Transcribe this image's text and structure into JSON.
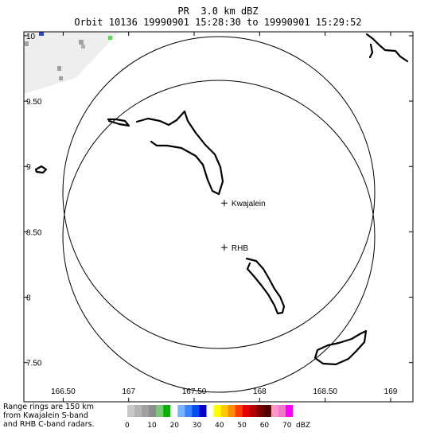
{
  "title": {
    "line1": "PR  3.0 km dBZ",
    "line2": "Orbit 10136 19990901 15:28:30 to 19990901 15:29:52"
  },
  "map": {
    "lon_ticks": [
      {
        "value": 166.5,
        "label": "166.50"
      },
      {
        "value": 167.0,
        "label": "167"
      },
      {
        "value": 167.5,
        "label": "167.50"
      },
      {
        "value": 168.0,
        "label": "168"
      },
      {
        "value": 168.5,
        "label": "168.50"
      },
      {
        "value": 169.0,
        "label": "169"
      }
    ],
    "lat_ticks": [
      {
        "value": 10.0,
        "label": "10"
      },
      {
        "value": 9.5,
        "label": "9.50"
      },
      {
        "value": 9.0,
        "label": "9"
      },
      {
        "value": 8.5,
        "label": "8.50"
      },
      {
        "value": 8.0,
        "label": "8"
      },
      {
        "value": 7.5,
        "label": "7.50"
      }
    ],
    "sites": [
      {
        "name": "Kwajalein",
        "lon": 167.73,
        "lat": 8.72
      },
      {
        "name": "RHB",
        "lon": 167.73,
        "lat": 8.38
      }
    ],
    "range_ring_km": 150,
    "swath_color": "#eeeeee"
  },
  "footnote": {
    "line1": "Range rings are 150 km",
    "line2": "from Kwajalein S-band",
    "line3": "and RHB C-band radars."
  },
  "colorbar": {
    "colors": [
      "#c8c8c8",
      "#b4b4b4",
      "#a0a0a0",
      "#8c8c8c",
      "#78c878",
      "#00b400",
      "#ffffff",
      "#78b4ff",
      "#3c82ff",
      "#0050f0",
      "#0000c8",
      "#ffffff",
      "#ffff00",
      "#ffc800",
      "#ff8c00",
      "#ff3c00",
      "#e60000",
      "#b40000",
      "#780000",
      "#500000",
      "#ff96c8",
      "#f078c8",
      "#ff00ff"
    ],
    "labels": [
      "0",
      "10",
      "20",
      "30",
      "40",
      "50",
      "60",
      "70"
    ],
    "unit": "dBZ"
  }
}
